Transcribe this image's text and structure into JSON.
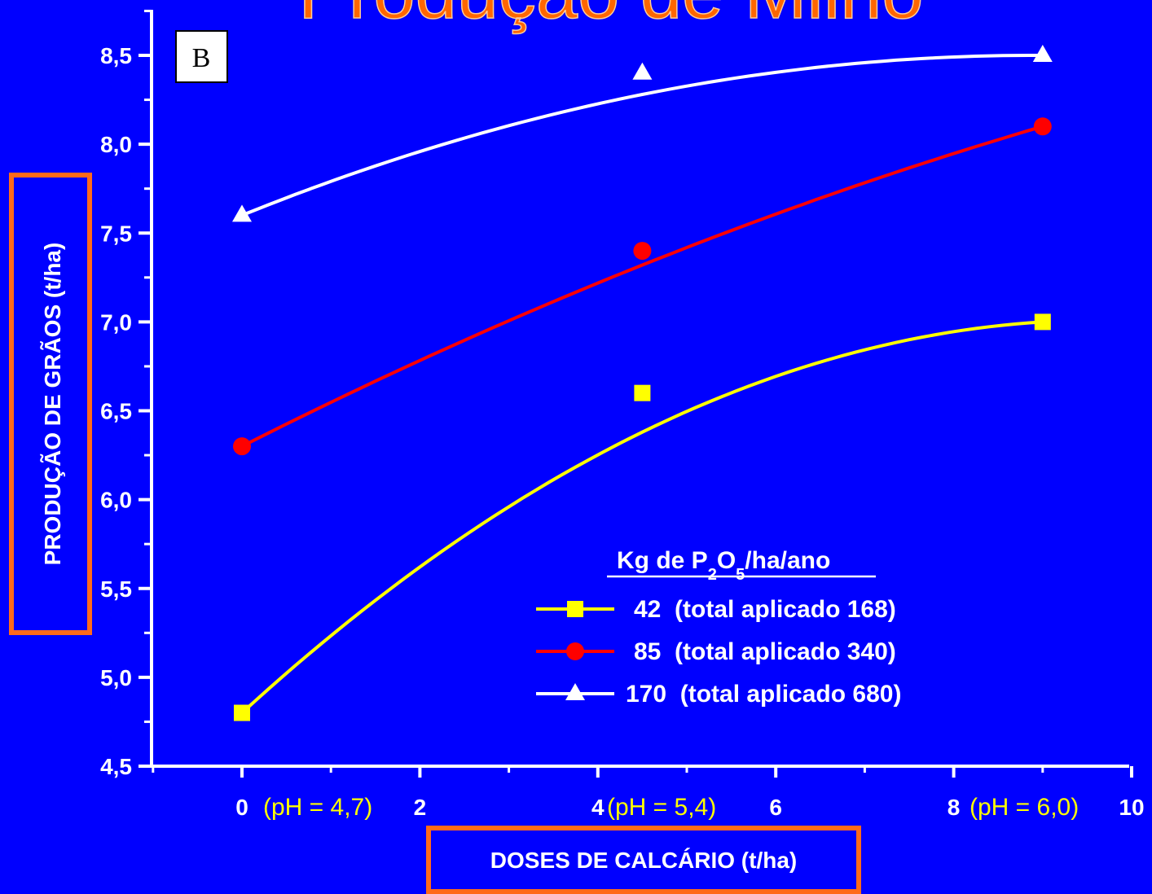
{
  "title": "Produção de Milho",
  "panel_label": "B",
  "colors": {
    "background": "#0000ff",
    "axis": "#ffffff",
    "title": "#ff6600",
    "box_border": "#ff6a1a",
    "ph_text": "#ffff00"
  },
  "ph_annotations": [
    "(pH = 4,7)",
    "(pH = 5,4)",
    "(pH = 6,0)"
  ],
  "legend": {
    "title_parts": [
      "Kg de P",
      "2",
      "O",
      "5",
      "/ha/ano"
    ]
  },
  "chart_data": {
    "type": "scatter",
    "title": "Produção de Milho",
    "xlabel": "DOSES DE CALCÁRIO (t/ha)",
    "ylabel": "PRODUÇÃO DE GRÃOS (t/ha)",
    "xlim": [
      -1,
      10
    ],
    "ylim": [
      4.5,
      8.75
    ],
    "x_ticks": [
      0,
      2,
      4,
      6,
      8,
      10
    ],
    "x_tick_labels": [
      "0",
      "2",
      "4",
      "6",
      "8",
      "10"
    ],
    "y_ticks": [
      4.5,
      5.0,
      5.5,
      6.0,
      6.5,
      7.0,
      7.5,
      8.0,
      8.5
    ],
    "y_tick_labels": [
      "4,5",
      "5,0",
      "5,5",
      "6,0",
      "6,5",
      "7,0",
      "7,5",
      "8,0",
      "8,5"
    ],
    "legend_title": "Kg de P2O5/ha/ano",
    "series": [
      {
        "name": "42  (total aplicado 168)",
        "color": "#ffff00",
        "marker": "square",
        "x": [
          0,
          4.5,
          9
        ],
        "y": [
          4.8,
          6.6,
          7.0
        ]
      },
      {
        "name": "85  (total aplicado 340)",
        "color": "#ff0000",
        "marker": "circle",
        "x": [
          0,
          4.5,
          9
        ],
        "y": [
          6.3,
          7.4,
          8.1
        ]
      },
      {
        "name": "170  (total aplicado 680)",
        "color": "#ffffff",
        "marker": "triangle",
        "x": [
          0,
          4.5,
          9
        ],
        "y": [
          7.6,
          8.4,
          8.5
        ]
      }
    ]
  }
}
